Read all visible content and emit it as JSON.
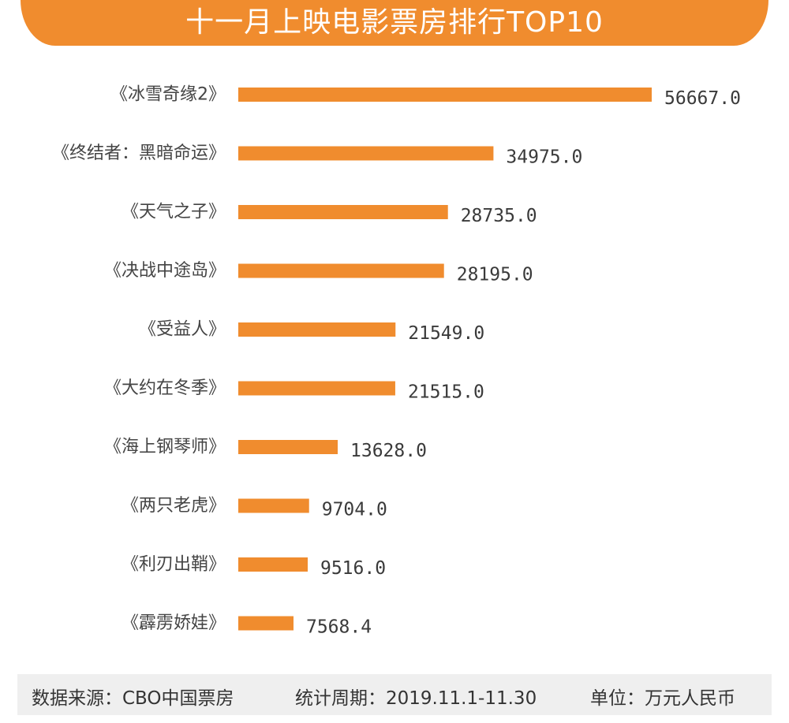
{
  "chart_data": {
    "type": "bar",
    "orientation": "horizontal",
    "title": "十一月上映电影票房排行TOP10",
    "categories": [
      "《冰雪奇缘2》",
      "《终结者：黑暗命运》",
      "《天气之子》",
      "《决战中途岛》",
      "《受益人》",
      "《大约在冬季》",
      "《海上钢琴师》",
      "《两只老虎》",
      "《利刃出鞘》",
      "《霹雳娇娃》"
    ],
    "values": [
      56667.0,
      34975.0,
      28735.0,
      28195.0,
      21549.0,
      21515.0,
      13628.0,
      9704.0,
      9516.0,
      7568.4
    ],
    "value_labels": [
      "56667.0",
      "34975.0",
      "28735.0",
      "28195.0",
      "21549.0",
      "21515.0",
      "13628.0",
      "9704.0",
      "9516.0",
      "7568.4"
    ],
    "grid": false,
    "legend": "none",
    "bar_color": "#f08c2e"
  },
  "footer": {
    "source": "数据来源：CBO中国票房",
    "period": "统计周期：2019.11.1-11.30",
    "unit": "单位：万元人民币"
  }
}
